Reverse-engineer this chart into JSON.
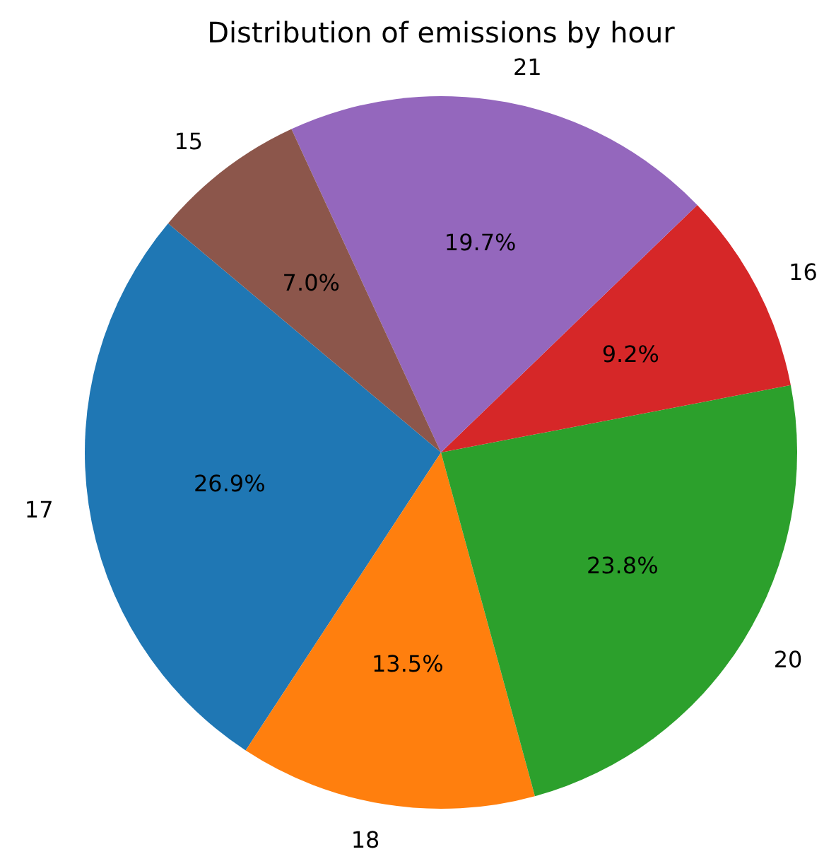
{
  "chart_data": {
    "type": "pie",
    "title": "Distribution of emissions by hour",
    "categories": [
      "17",
      "18",
      "20",
      "16",
      "21",
      "15"
    ],
    "values": [
      26.9,
      13.5,
      23.8,
      9.2,
      19.7,
      7.0
    ],
    "value_labels": [
      "26.9%",
      "13.5%",
      "23.8%",
      "9.2%",
      "19.7%",
      "7.0%"
    ],
    "colors": [
      "#1f77b4",
      "#ff7f0e",
      "#2ca02c",
      "#d62728",
      "#9467bd",
      "#8c564b"
    ]
  }
}
